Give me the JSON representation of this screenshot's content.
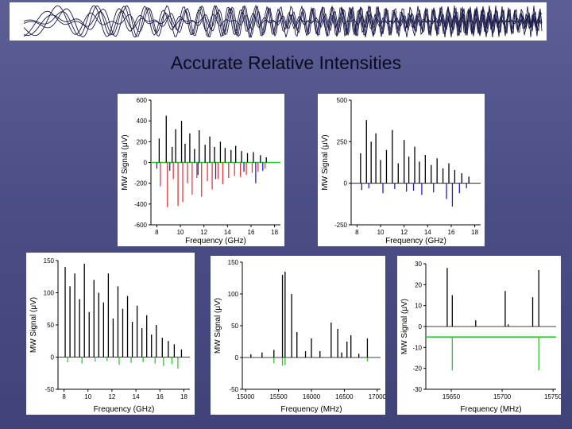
{
  "slide": {
    "title": "Accurate Relative Intensities"
  },
  "colors": {
    "black": "#000000",
    "red": "#e8383c",
    "blue": "#2020c8",
    "green": "#2ec82e",
    "gray": "#888888"
  },
  "chart_data": [
    {
      "type": "bar",
      "xlabel": "Frequency (GHz)",
      "ylabel": "MW Signal (μV)",
      "xlim": [
        7.5,
        18.5
      ],
      "ylim": [
        -600,
        600
      ],
      "xticks": [
        8,
        10,
        12,
        14,
        16,
        18
      ],
      "yticks": [
        600,
        400,
        200,
        0,
        -200,
        -400,
        -600
      ],
      "upper": {
        "color": "black",
        "x": [
          8.2,
          8.8,
          9.3,
          9.6,
          10.1,
          10.4,
          10.8,
          11.2,
          11.6,
          12.1,
          12.5,
          12.9,
          13.4,
          13.8,
          14.3,
          14.7,
          15.2,
          15.7,
          16.2,
          16.8,
          17.3
        ],
        "values": [
          230,
          450,
          150,
          320,
          400,
          180,
          280,
          130,
          310,
          170,
          250,
          150,
          200,
          140,
          120,
          160,
          110,
          90,
          100,
          70,
          50
        ]
      },
      "lower": {
        "color": "red",
        "x": [
          8.3,
          8.9,
          9.4,
          9.8,
          10.2,
          10.6,
          11.0,
          11.4,
          11.8,
          12.3,
          12.7,
          13.2,
          13.6,
          14.1,
          14.6,
          15.1,
          15.6,
          16.1,
          16.6,
          17.2
        ],
        "values": [
          -230,
          -430,
          -160,
          -420,
          -380,
          -200,
          -310,
          -150,
          -330,
          -180,
          -260,
          -160,
          -210,
          -150,
          -130,
          -140,
          -120,
          -100,
          -90,
          -60
        ]
      },
      "lower2": {
        "color": "blue",
        "x": [
          8.0,
          9.1,
          11.5,
          13.0,
          15.4,
          16.4,
          17.0
        ],
        "values": [
          -60,
          -80,
          -120,
          -160,
          -90,
          -200,
          -80
        ]
      },
      "baseline_color": "green"
    },
    {
      "type": "bar",
      "xlabel": "Frequency (GHz)",
      "ylabel": "MW Signal (μV)",
      "xlim": [
        7.5,
        18.5
      ],
      "ylim": [
        -250,
        500
      ],
      "xticks": [
        8,
        10,
        12,
        14,
        16,
        18
      ],
      "yticks": [
        500,
        250,
        0,
        -250
      ],
      "upper": {
        "color": "black",
        "x": [
          8.3,
          8.8,
          9.2,
          9.6,
          10.0,
          10.5,
          11.0,
          11.5,
          12.0,
          12.4,
          12.9,
          13.3,
          13.8,
          14.3,
          14.8,
          15.3,
          15.8,
          16.3,
          16.9,
          17.5
        ],
        "values": [
          180,
          380,
          250,
          300,
          140,
          200,
          320,
          120,
          260,
          160,
          220,
          130,
          170,
          110,
          150,
          90,
          120,
          80,
          60,
          40
        ]
      },
      "lower": {
        "color": "blue",
        "x": [
          8.4,
          9.0,
          10.2,
          11.2,
          12.2,
          12.8,
          13.5,
          14.5,
          15.6,
          16.1,
          16.7,
          17.3
        ],
        "values": [
          -40,
          -30,
          -60,
          -35,
          -50,
          -45,
          -70,
          -55,
          -95,
          -140,
          -60,
          -30
        ]
      }
    },
    {
      "type": "bar",
      "xlabel": "Frequency (GHz)",
      "ylabel": "MW Signal (μV)",
      "xlim": [
        7.5,
        18.5
      ],
      "ylim": [
        -50,
        150
      ],
      "xticks": [
        8,
        10,
        12,
        14,
        16,
        18
      ],
      "yticks": [
        150,
        100,
        50,
        0,
        -50
      ],
      "upper": {
        "color": "black",
        "x": [
          8.1,
          8.5,
          8.9,
          9.3,
          9.7,
          10.1,
          10.5,
          10.9,
          11.3,
          11.7,
          12.1,
          12.5,
          12.9,
          13.3,
          13.7,
          14.1,
          14.5,
          14.9,
          15.3,
          15.7,
          16.2,
          16.7,
          17.2,
          17.8
        ],
        "values": [
          140,
          110,
          130,
          90,
          145,
          70,
          120,
          100,
          85,
          130,
          60,
          110,
          75,
          95,
          55,
          80,
          45,
          65,
          35,
          50,
          30,
          25,
          20,
          12
        ]
      },
      "lower": {
        "color": "green",
        "x": [
          8.3,
          9.5,
          10.6,
          11.6,
          12.6,
          13.6,
          14.6,
          15.6,
          16.3,
          17.0,
          17.5
        ],
        "values": [
          -8,
          -10,
          -7,
          -6,
          -12,
          -9,
          -8,
          -10,
          -14,
          -11,
          -18
        ]
      }
    },
    {
      "type": "bar",
      "xlabel": "Frequency (MHz)",
      "ylabel": "MW Signal (μV)",
      "xlim": [
        14950,
        17050
      ],
      "ylim": [
        -50,
        150
      ],
      "xticks": [
        15000,
        15500,
        16000,
        16500,
        17000
      ],
      "yticks": [
        150,
        100,
        50,
        0,
        -50
      ],
      "upper": {
        "color": "black",
        "x": [
          15080,
          15250,
          15430,
          15560,
          15600,
          15700,
          15780,
          15910,
          16000,
          16130,
          16300,
          16400,
          16460,
          16540,
          16600,
          16720,
          16850
        ],
        "values": [
          5,
          8,
          12,
          130,
          135,
          100,
          40,
          10,
          30,
          10,
          55,
          45,
          8,
          25,
          35,
          6,
          30
        ]
      },
      "lower": {
        "color": "green",
        "x": [
          15430,
          15560,
          15600,
          16850
        ],
        "values": [
          -9,
          -13,
          -12,
          -6
        ]
      }
    },
    {
      "type": "bar",
      "xlabel": "Frequency (MHz)",
      "ylabel": "MW Signal (μV)",
      "xlim": [
        15625,
        15753
      ],
      "ylim": [
        -30,
        30
      ],
      "xticks": [
        15650,
        15700,
        15750
      ],
      "yticks": [
        30,
        20,
        10,
        0,
        -10,
        -20,
        -30
      ],
      "upper": {
        "color": "black",
        "x": [
          15646,
          15651,
          15674,
          15703,
          15706,
          15730,
          15736
        ],
        "values": [
          28,
          15,
          3,
          17,
          1,
          14,
          27
        ]
      },
      "lower": {
        "color": "green",
        "x": [
          15651,
          15736
        ],
        "values": [
          -21,
          -21
        ]
      },
      "lower_baseline": -5
    }
  ]
}
